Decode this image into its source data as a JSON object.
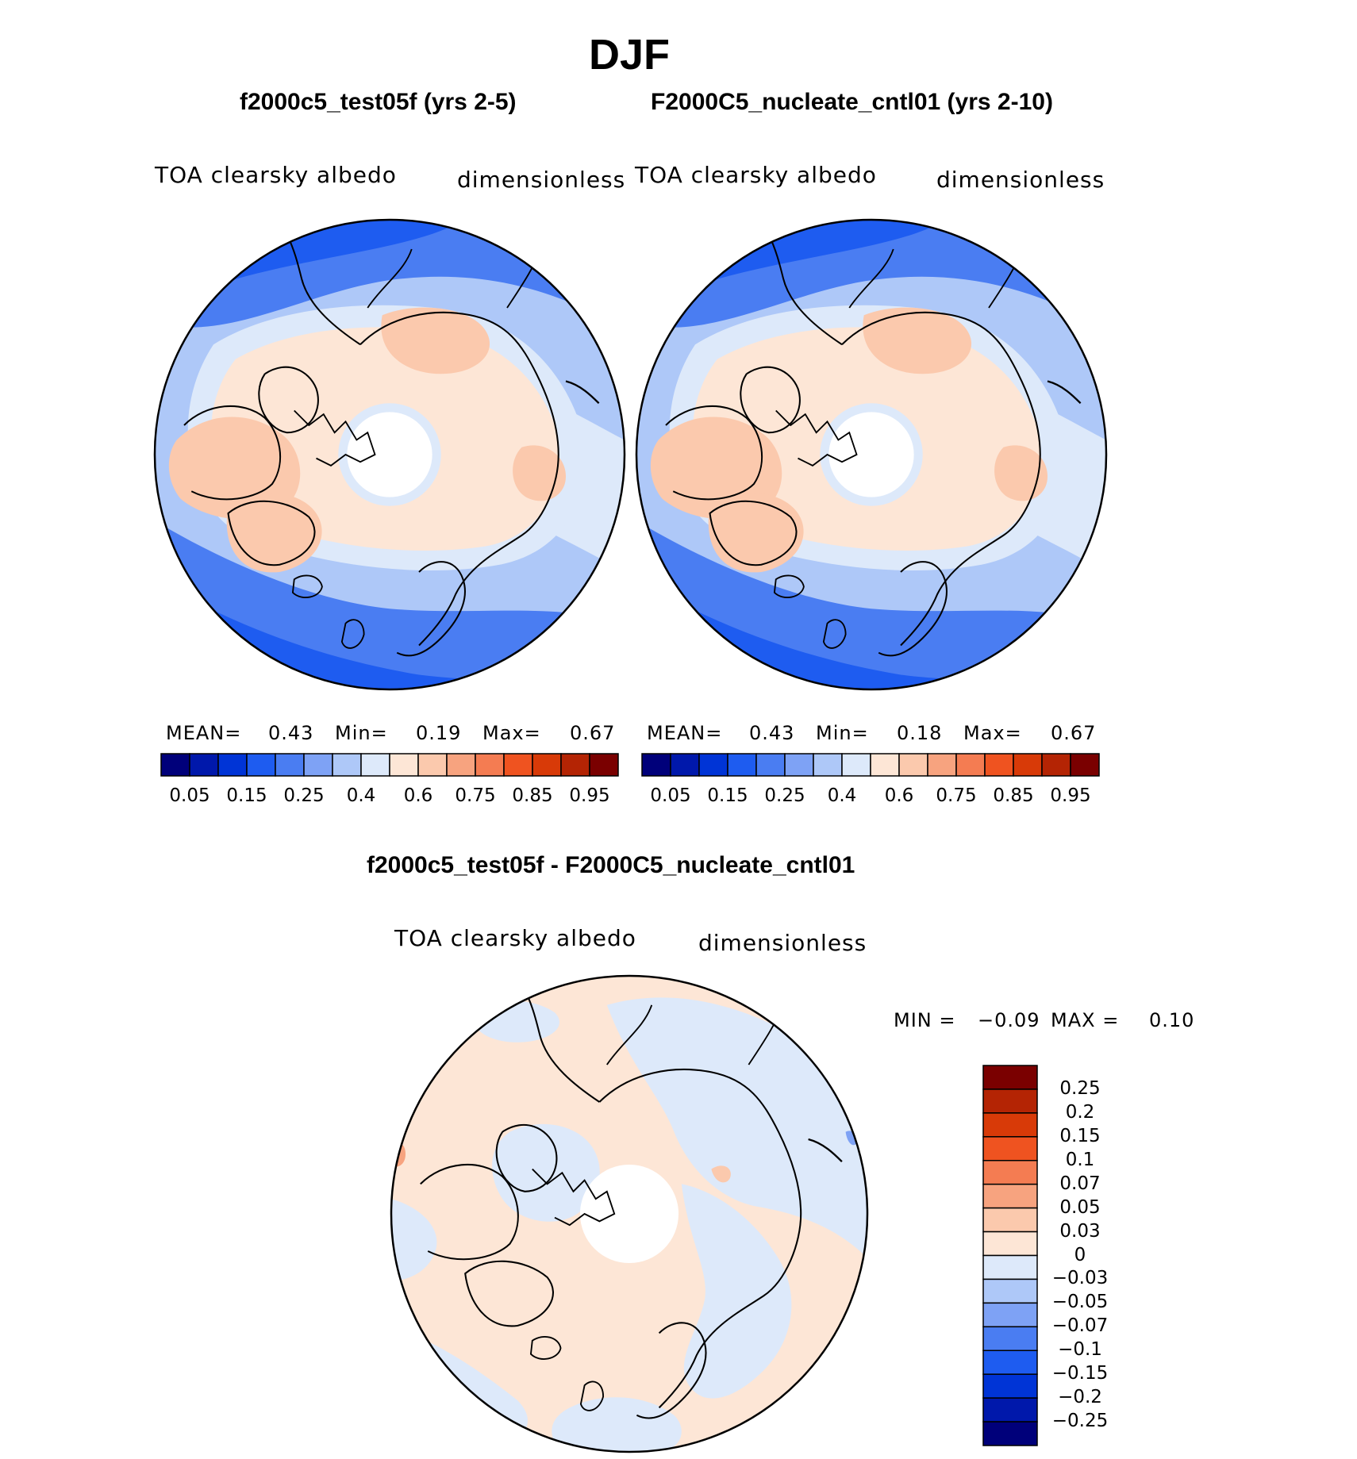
{
  "season": "DJF",
  "panels": [
    {
      "case_title": "f2000c5_test05f (yrs 2-5)",
      "variable": "TOA clearsky albedo",
      "units": "dimensionless",
      "stats": {
        "mean_label": "MEAN=",
        "mean": "0.43",
        "min_label": "Min=",
        "min": "0.19",
        "max_label": "Max=",
        "max": "0.67"
      }
    },
    {
      "case_title": "F2000C5_nucleate_cntl01 (yrs 2-10)",
      "variable": "TOA clearsky albedo",
      "units": "dimensionless",
      "stats": {
        "mean_label": "MEAN=",
        "mean": "0.43",
        "min_label": "Min=",
        "min": "0.18",
        "max_label": "Max=",
        "max": "0.67"
      }
    }
  ],
  "colorbar_top": {
    "colors": [
      "#00007a",
      "#0018ab",
      "#0034d6",
      "#1e5cf0",
      "#4a7df2",
      "#7ea2f5",
      "#aec8f8",
      "#dde9fa",
      "#fde6d6",
      "#fbc9ad",
      "#f7a37f",
      "#f47c52",
      "#ef5320",
      "#d83a08",
      "#b42404",
      "#7a0000"
    ],
    "tick_labels": [
      "0.05",
      "0.15",
      "0.25",
      "0.4",
      "0.6",
      "0.75",
      "0.85",
      "0.95"
    ]
  },
  "diff": {
    "title": "f2000c5_test05f - F2000C5_nucleate_cntl01",
    "variable": "TOA clearsky albedo",
    "units": "dimensionless",
    "minmax": {
      "min_label": "MIN =",
      "min": "−0.09",
      "max_label": "MAX =",
      "max": "0.10"
    }
  },
  "colorbar_diff": {
    "colors_top_to_bottom": [
      "#7a0000",
      "#b42404",
      "#d83a08",
      "#ef5320",
      "#f47c52",
      "#f7a37f",
      "#fbc9ad",
      "#fde6d6",
      "#dde9fa",
      "#aec8f8",
      "#7ea2f5",
      "#4a7df2",
      "#1e5cf0",
      "#0034d6",
      "#0018ab",
      "#00007a"
    ],
    "tick_labels": [
      "0.25",
      "0.2",
      "0.15",
      "0.1",
      "0.07",
      "0.05",
      "0.03",
      "0",
      "−0.03",
      "−0.05",
      "−0.07",
      "−0.1",
      "−0.15",
      "−0.2",
      "−0.25"
    ]
  }
}
